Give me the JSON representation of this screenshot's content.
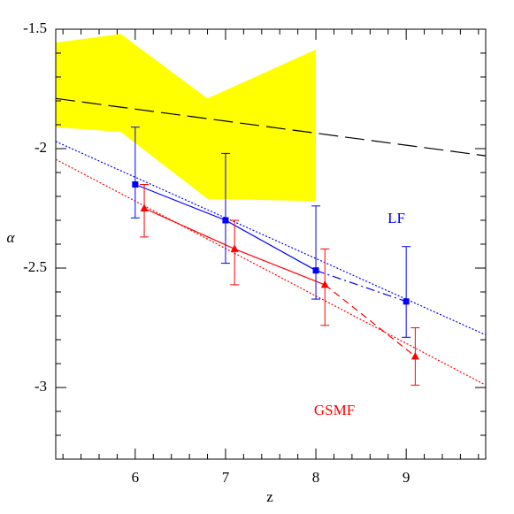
{
  "chart_data": {
    "type": "line",
    "xlabel": "z",
    "ylabel": "α",
    "xlim": [
      5.12,
      9.88
    ],
    "ylim": [
      -3.3,
      -1.5
    ],
    "xticks": [
      6,
      7,
      8,
      9
    ],
    "yticks": [
      -1.5,
      -2,
      -2.5,
      -3
    ],
    "xminorticks": [
      5.2,
      5.4,
      5.6,
      5.8,
      6.2,
      6.4,
      6.6,
      6.8,
      7.2,
      7.4,
      7.6,
      7.8,
      8.2,
      8.4,
      8.6,
      8.8,
      9.2,
      9.4,
      9.6,
      9.8
    ],
    "yminorticks": [
      -1.6,
      -1.7,
      -1.8,
      -1.9,
      -2.1,
      -2.2,
      -2.3,
      -2.4,
      -2.6,
      -2.7,
      -2.8,
      -2.9,
      -3.1,
      -3.2
    ],
    "band": {
      "color": "#ffff00",
      "x": [
        5.12,
        5.84,
        6.8,
        8.0
      ],
      "upper": [
        -1.556,
        -1.52,
        -1.79,
        -1.585
      ],
      "lower": [
        -1.91,
        -1.93,
        -2.21,
        -2.22
      ]
    },
    "fits": [
      {
        "color": "#000000",
        "style": "longdash",
        "x": [
          5.12,
          9.88
        ],
        "values": [
          -1.79,
          -2.03
        ]
      },
      {
        "color": "#0000ff",
        "style": "dotted",
        "x": [
          5.12,
          9.88
        ],
        "values": [
          -1.97,
          -2.78
        ]
      },
      {
        "color": "#ff0000",
        "style": "dotted",
        "x": [
          5.12,
          9.88
        ],
        "values": [
          -2.045,
          -2.99
        ]
      }
    ],
    "series": [
      {
        "name": "LF",
        "color": "#0000ff",
        "marker": "square",
        "last_segment": "dashdot",
        "x": [
          6,
          7,
          8,
          9
        ],
        "values": [
          -2.15,
          -2.3,
          -2.51,
          -2.64
        ],
        "upper": [
          -1.91,
          -2.02,
          -2.24,
          -2.41
        ],
        "lower": [
          -2.29,
          -2.48,
          -2.63,
          -2.79
        ]
      },
      {
        "name": "GSMF",
        "color": "#ff0000",
        "marker": "triangle",
        "last_segment": "dashed",
        "x": [
          6.1,
          7.1,
          8.1,
          9.1
        ],
        "values": [
          -2.25,
          -2.42,
          -2.57,
          -2.87
        ],
        "upper": [
          -2.15,
          -2.3,
          -2.42,
          -2.75
        ],
        "lower": [
          -2.37,
          -2.57,
          -2.74,
          -2.99
        ]
      }
    ]
  }
}
